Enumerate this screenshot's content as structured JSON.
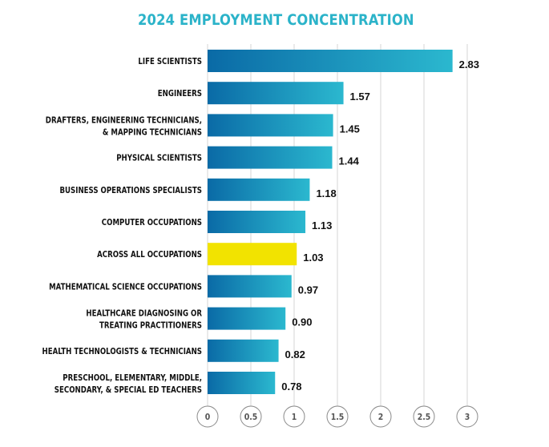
{
  "chart_data": {
    "type": "bar",
    "orientation": "horizontal",
    "title": "2024 EMPLOYMENT CONCENTRATION",
    "xlabel": "",
    "ylabel": "",
    "xlim": [
      0,
      3
    ],
    "xticks": [
      "0",
      "0.5",
      "1",
      "1.5",
      "2",
      "2.5",
      "3"
    ],
    "grid": true,
    "categories": [
      [
        "LIFE SCIENTISTS"
      ],
      [
        "ENGINEERS"
      ],
      [
        "DRAFTERS, ENGINEERING TECHNICIANS,",
        "& MAPPING TECHNICIANS"
      ],
      [
        "PHYSICAL SCIENTISTS"
      ],
      [
        "BUSINESS OPERATIONS SPECIALISTS"
      ],
      [
        "COMPUTER OCCUPATIONS"
      ],
      [
        "ACROSS ALL OCCUPATIONS"
      ],
      [
        "MATHEMATICAL SCIENCE OCCUPATIONS"
      ],
      [
        "HEALTHCARE DIAGNOSING OR",
        "TREATING PRACTITIONERS"
      ],
      [
        "HEALTH TECHNOLOGISTS & TECHNICIANS"
      ],
      [
        "PRESCHOOL, ELEMENTARY, MIDDLE,",
        "SECONDARY, & SPECIAL ED TEACHERS"
      ]
    ],
    "values": [
      2.83,
      1.57,
      1.45,
      1.44,
      1.18,
      1.13,
      1.03,
      0.97,
      0.9,
      0.82,
      0.78
    ],
    "value_labels": [
      "2.83",
      "1.57",
      "1.45",
      "1.44",
      "1.18",
      "1.13",
      "1.03",
      "0.97",
      "0.90",
      "0.82",
      "0.78"
    ],
    "highlight_index": 6,
    "colors": {
      "title": "#2bb3c9",
      "bar_start": "#0a6aa6",
      "bar_end": "#2bb8cf",
      "highlight": "#f2e300",
      "grid": "#d4d4d4",
      "tick_circle": "#8a8a8a"
    }
  }
}
